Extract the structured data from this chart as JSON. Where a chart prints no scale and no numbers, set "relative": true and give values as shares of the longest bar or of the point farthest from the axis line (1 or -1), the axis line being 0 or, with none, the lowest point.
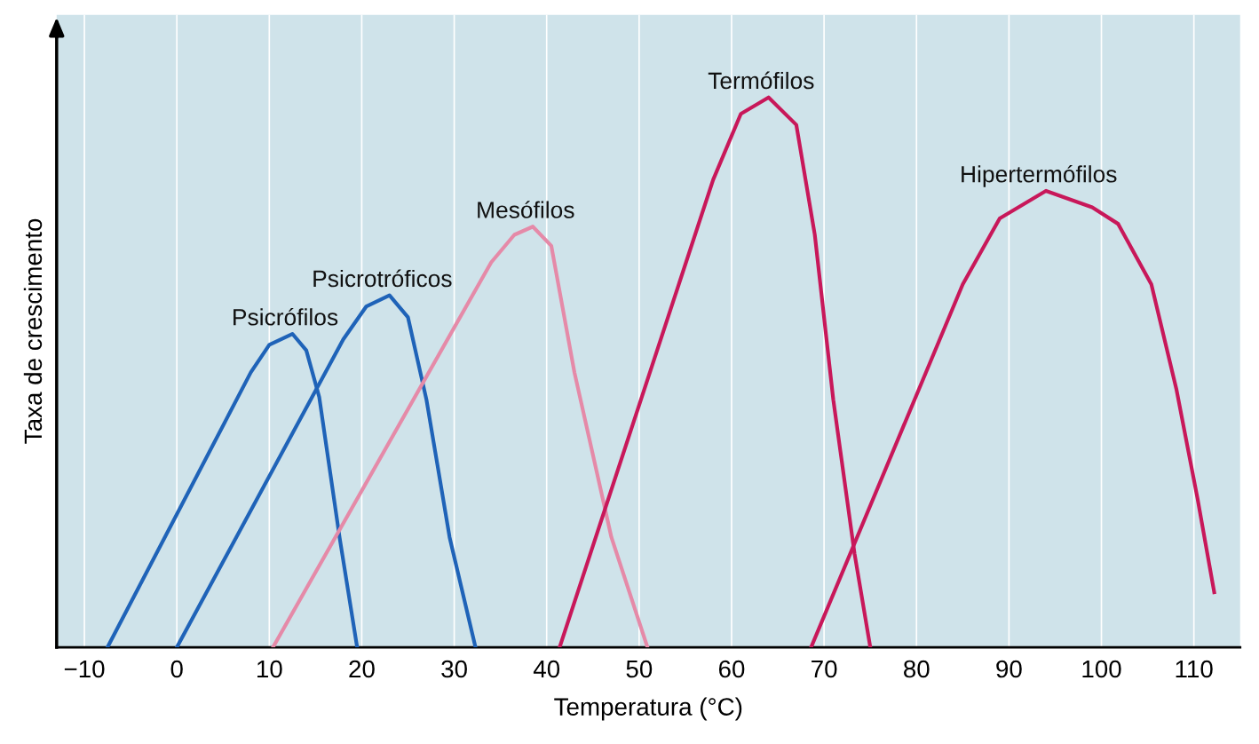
{
  "chart_data": {
    "type": "line",
    "relative": true,
    "xlabel": "Temperatura (°C)",
    "ylabel": "Taxa de crescimento",
    "xlim": [
      -13,
      115
    ],
    "xticks": [
      -10,
      0,
      10,
      20,
      30,
      40,
      50,
      60,
      70,
      80,
      90,
      100,
      110
    ],
    "grid": "x",
    "legend": false,
    "marker": "none",
    "line_style": "solid",
    "series": [
      {
        "name": "Psicrófilos",
        "color": "#1f63b8",
        "x": [
          -7.5,
          8,
          10,
          12.5,
          14,
          15.4,
          17.6,
          19.5
        ],
        "values": [
          0,
          0.5,
          0.55,
          0.57,
          0.54,
          0.455,
          0.2,
          0
        ]
      },
      {
        "name": "Psicrotróficos",
        "color": "#1f63b8",
        "x": [
          0,
          18,
          20.5,
          23,
          25,
          27,
          29.5,
          32.3
        ],
        "values": [
          0,
          0.56,
          0.62,
          0.64,
          0.6,
          0.45,
          0.2,
          0
        ]
      },
      {
        "name": "Mesófilos",
        "color": "#e58aa8",
        "x": [
          10.4,
          34,
          36.5,
          38.5,
          40.5,
          43,
          47,
          50.9
        ],
        "values": [
          0,
          0.7,
          0.75,
          0.765,
          0.73,
          0.5,
          0.2,
          0
        ]
      },
      {
        "name": "Termófilos",
        "color": "#c8185a",
        "x": [
          41.4,
          58,
          61,
          64,
          67,
          69,
          71,
          73.3,
          75
        ],
        "values": [
          0,
          0.85,
          0.97,
          1.0,
          0.95,
          0.75,
          0.45,
          0.17,
          0
        ]
      },
      {
        "name": "Hipertermófilos",
        "color": "#c8185a",
        "x": [
          68.6,
          85,
          89,
          94,
          99,
          101.8,
          105.4,
          108.1,
          110.4,
          112.2
        ],
        "values": [
          0,
          0.66,
          0.78,
          0.83,
          0.8,
          0.77,
          0.66,
          0.47,
          0.27,
          0.1
        ]
      }
    ]
  }
}
